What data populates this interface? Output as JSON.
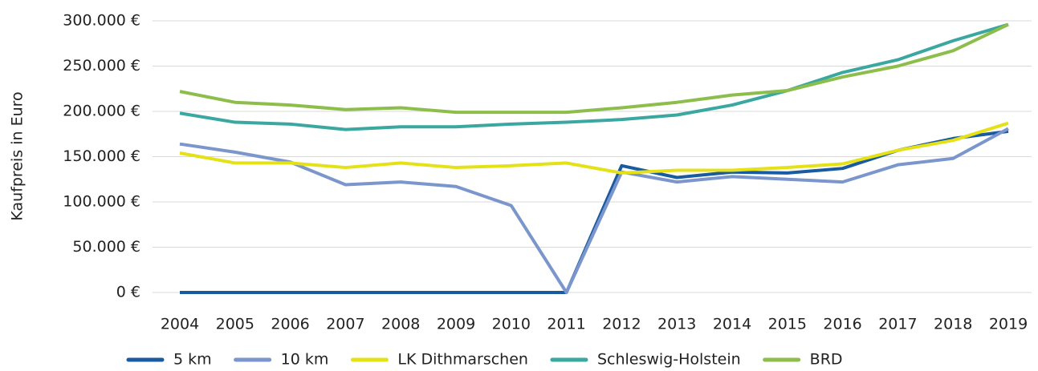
{
  "chart_data": {
    "type": "line",
    "y_label": "Kaufpreis in Euro",
    "categories": [
      "2004",
      "2005",
      "2006",
      "2007",
      "2008",
      "2009",
      "2010",
      "2011",
      "2012",
      "2013",
      "2014",
      "2015",
      "2016",
      "2017",
      "2018",
      "2019"
    ],
    "ylim": [
      0,
      300000
    ],
    "yticks": [
      {
        "value": 0,
        "label": "0 €"
      },
      {
        "value": 50000,
        "label": "50.000 €"
      },
      {
        "value": 100000,
        "label": "100.000 €"
      },
      {
        "value": 150000,
        "label": "150.000 €"
      },
      {
        "value": 200000,
        "label": "200.000 €"
      },
      {
        "value": 250000,
        "label": "250.000 €"
      },
      {
        "value": 300000,
        "label": "300.000 €"
      }
    ],
    "grid": true,
    "series": [
      {
        "name": "5 km",
        "color": "#1a5a9e",
        "values": [
          0,
          0,
          0,
          0,
          0,
          0,
          0,
          0,
          140000,
          127000,
          133000,
          132000,
          137000,
          157000,
          170000,
          178000
        ]
      },
      {
        "name": "10 km",
        "color": "#7b96cc",
        "values": [
          164000,
          155000,
          144000,
          119000,
          122000,
          117000,
          96000,
          0,
          133000,
          122000,
          128000,
          125000,
          122000,
          141000,
          148000,
          181000
        ]
      },
      {
        "name": "LK Dithmarschen",
        "color": "#e5e117",
        "values": [
          154000,
          143000,
          143000,
          138000,
          143000,
          138000,
          140000,
          143000,
          132000,
          135000,
          135000,
          138000,
          142000,
          157000,
          168000,
          187000
        ]
      },
      {
        "name": "Schleswig-Holstein",
        "color": "#3aa8a0",
        "values": [
          198000,
          188000,
          186000,
          180000,
          183000,
          183000,
          186000,
          188000,
          191000,
          196000,
          207000,
          223000,
          243000,
          257000,
          278000,
          296000
        ]
      },
      {
        "name": "BRD",
        "color": "#8dbd4a",
        "values": [
          222000,
          210000,
          207000,
          202000,
          204000,
          199000,
          199000,
          199000,
          204000,
          210000,
          218000,
          223000,
          238000,
          250000,
          267000,
          296000
        ]
      }
    ]
  }
}
